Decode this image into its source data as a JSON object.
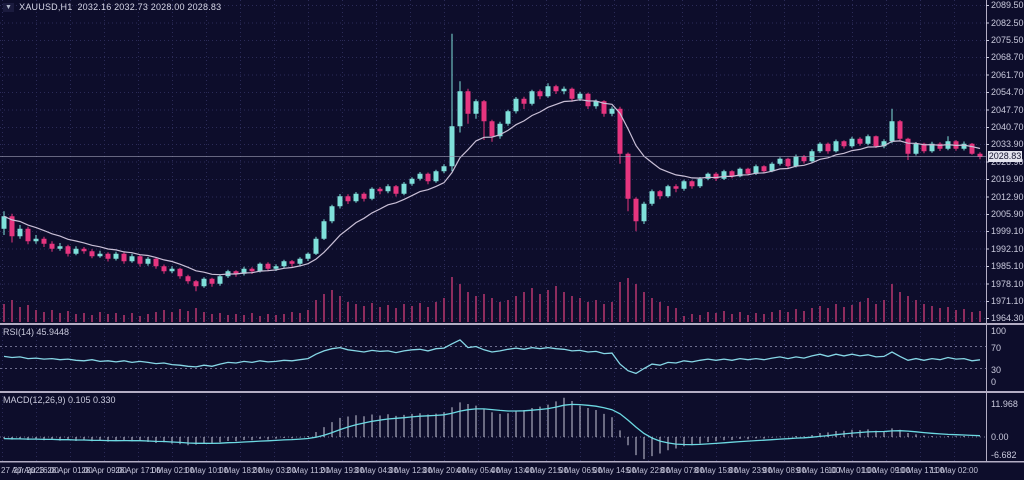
{
  "window": {
    "symbol": "XAUUSD,H1",
    "ohlc": "2032.16 2032.73 2028.00 2028.83"
  },
  "icons": {
    "symbol_marker": "▼"
  },
  "colors": {
    "background": "#0d0d2b",
    "grid": "#2b2b58",
    "bull": "#7fe0da",
    "bear": "#e6357f",
    "ma_line": "#c9bfd6",
    "volume": "#8e2c5e",
    "separator": "#b3adc4",
    "rsi_line": "#86d7e6",
    "level_dotted": "#8f8fb0",
    "macd_hist": "#c9c9da",
    "macd_signal": "#6cd9e2",
    "axis_text": "#c9c9dc",
    "current_price_line": "#9c9cb4",
    "price_box_bg": "#e3e3ee"
  },
  "indicators": {
    "rsi": {
      "label": "RSI(14) 45.9448"
    },
    "macd": {
      "label": "MACD(12,26,9) 0.105 0.330"
    }
  },
  "axes": {
    "price_labels": [
      2089.5,
      2082.5,
      2075.5,
      2068.7,
      2061.7,
      2054.7,
      2047.7,
      2040.7,
      2033.9,
      2026.9,
      2019.9,
      2012.9,
      2005.9,
      1999.1,
      1992.1,
      1985.1,
      1978.1,
      1971.1,
      1964.3
    ],
    "rsi_labels": [
      100,
      70,
      30,
      0
    ],
    "macd_labels": [
      "11.968",
      "0.00",
      "-6.682"
    ],
    "time_labels": [
      "27 Apr 2023",
      "27 Apr 16:00",
      "28 Apr 01:00",
      "28 Apr 09:00",
      "28 Apr 17:00",
      "1 May 02:00",
      "1 May 10:00",
      "1 May 18:00",
      "2 May 03:00",
      "2 May 11:00",
      "2 May 19:00",
      "3 May 04:00",
      "3 May 12:00",
      "3 May 20:00",
      "4 May 05:00",
      "4 May 13:00",
      "4 May 21:00",
      "5 May 06:00",
      "5 May 14:00",
      "5 May 22:00",
      "8 May 07:00",
      "8 May 15:00",
      "8 May 23:00",
      "9 May 08:00",
      "9 May 16:00",
      "10 May 01:00",
      "10 May 09:00",
      "10 May 17:00",
      "11 May 02:00"
    ]
  },
  "chart_data": {
    "type": "candlestick",
    "symbol": "XAUUSD",
    "timeframe": "H1",
    "title": "XAUUSD,H1 2032.16 2032.73 2028.00 2028.83",
    "current_price": 2028.83,
    "current_price_label": "2028.83",
    "ylim": [
      1960.1,
      2091.5
    ],
    "ma_period": 10,
    "candles": [
      [
        2000,
        2007,
        1997.5,
        2005
      ],
      [
        2005,
        2006,
        1994.5,
        1997
      ],
      [
        1997,
        2001.5,
        1996,
        2000
      ],
      [
        2000,
        2000.8,
        1993.8,
        1995
      ],
      [
        1995,
        1997.5,
        1994,
        1996
      ],
      [
        1996,
        1996.8,
        1992.7,
        1994
      ],
      [
        1994,
        1995,
        1990.8,
        1992
      ],
      [
        1992,
        1994.3,
        1991.2,
        1993
      ],
      [
        1993,
        1993.6,
        1988.9,
        1990
      ],
      [
        1990,
        1993,
        1989.4,
        1992
      ],
      [
        1992,
        1992.7,
        1990,
        1991
      ],
      [
        1991,
        1991.8,
        1988.2,
        1989
      ],
      [
        1989,
        1991.2,
        1988.4,
        1990
      ],
      [
        1990,
        1990.6,
        1986.9,
        1988
      ],
      [
        1988,
        1990.8,
        1987.3,
        1990
      ],
      [
        1990,
        1990.5,
        1986,
        1987
      ],
      [
        1987,
        1990,
        1986.4,
        1989
      ],
      [
        1989,
        1989.5,
        1984.9,
        1986
      ],
      [
        1986,
        1988.7,
        1985.2,
        1988
      ],
      [
        1988,
        1988.4,
        1984,
        1985
      ],
      [
        1985,
        1985.7,
        1982,
        1983
      ],
      [
        1983,
        1985,
        1982.2,
        1984
      ],
      [
        1984,
        1984.4,
        1980,
        1981
      ],
      [
        1981,
        1981.6,
        1978,
        1979
      ],
      [
        1979,
        1979.5,
        1975,
        1977
      ],
      [
        1977,
        1980.6,
        1976.4,
        1980
      ],
      [
        1980,
        1980.4,
        1976.8,
        1978
      ],
      [
        1978,
        1981.6,
        1977.2,
        1981
      ],
      [
        1981,
        1983.6,
        1980.3,
        1983
      ],
      [
        1983,
        1983.4,
        1980.8,
        1982
      ],
      [
        1982,
        1984.8,
        1981.3,
        1984
      ],
      [
        1984,
        1984.6,
        1981.9,
        1983
      ],
      [
        1983,
        1986.5,
        1982.5,
        1986
      ],
      [
        1986,
        1986.6,
        1983,
        1984
      ],
      [
        1984,
        1985.8,
        1983.1,
        1985
      ],
      [
        1985,
        1987.6,
        1984.2,
        1987
      ],
      [
        1987,
        1987.5,
        1984.8,
        1986
      ],
      [
        1986,
        1988.6,
        1985.3,
        1988
      ],
      [
        1988,
        1990.5,
        1987.1,
        1990
      ],
      [
        1990,
        1996.8,
        1989.5,
        1996
      ],
      [
        1996,
        2003.8,
        1995.5,
        2003
      ],
      [
        2003,
        2009.6,
        2002.2,
        2009
      ],
      [
        2009,
        2013.9,
        2008.1,
        2013
      ],
      [
        2013,
        2013.8,
        2009.9,
        2011
      ],
      [
        2011,
        2014.7,
        2010.4,
        2014
      ],
      [
        2014,
        2014.6,
        2010.9,
        2012
      ],
      [
        2012,
        2016.6,
        2011.4,
        2016
      ],
      [
        2016,
        2016.7,
        2013.8,
        2015
      ],
      [
        2015,
        2017.8,
        2014.2,
        2017
      ],
      [
        2017,
        2017.5,
        2012.9,
        2014
      ],
      [
        2014,
        2018.7,
        2013.4,
        2018
      ],
      [
        2018,
        2020.6,
        2017.2,
        2020
      ],
      [
        2020,
        2022.7,
        2019.3,
        2022
      ],
      [
        2022,
        2022.5,
        2017.8,
        2019
      ],
      [
        2019,
        2023.6,
        2018.4,
        2023
      ],
      [
        2023,
        2025.8,
        2022.2,
        2025
      ],
      [
        2025,
        2078,
        2023,
        2041
      ],
      [
        2041,
        2059,
        2038.5,
        2055
      ],
      [
        2055,
        2056,
        2042,
        2046
      ],
      [
        2046,
        2051.8,
        2044,
        2051
      ],
      [
        2051,
        2051.5,
        2035.5,
        2043
      ],
      [
        2043,
        2043.6,
        2034.8,
        2037
      ],
      [
        2037,
        2042.8,
        2036,
        2042
      ],
      [
        2042,
        2047.6,
        2041.2,
        2047
      ],
      [
        2047,
        2052.7,
        2046.1,
        2052
      ],
      [
        2052,
        2052.8,
        2047.9,
        2050
      ],
      [
        2050,
        2055.6,
        2049.3,
        2055
      ],
      [
        2055,
        2055.7,
        2051.8,
        2053
      ],
      [
        2053,
        2058.2,
        2052.4,
        2057
      ],
      [
        2057,
        2057.6,
        2053.9,
        2055
      ],
      [
        2055,
        2056.9,
        2053.8,
        2056
      ],
      [
        2056,
        2056.5,
        2050.8,
        2052
      ],
      [
        2052,
        2054.8,
        2051.1,
        2054
      ],
      [
        2054,
        2054.4,
        2047.9,
        2049
      ],
      [
        2049,
        2051.7,
        2048,
        2051
      ],
      [
        2051,
        2051.4,
        2044.8,
        2046
      ],
      [
        2046,
        2048.9,
        2045,
        2048
      ],
      [
        2048,
        2048.8,
        2026,
        2030
      ],
      [
        2030,
        2030.5,
        2007,
        2012
      ],
      [
        2012,
        2012.6,
        1999,
        2003
      ],
      [
        2003,
        2010.8,
        2001.9,
        2010
      ],
      [
        2010,
        2015.7,
        2009.2,
        2015
      ],
      [
        2015,
        2015.5,
        2011.8,
        2013
      ],
      [
        2013,
        2017.6,
        2012.4,
        2017
      ],
      [
        2017,
        2017.8,
        2014.6,
        2016
      ],
      [
        2016,
        2019.6,
        2015.2,
        2019
      ],
      [
        2019,
        2019.4,
        2016,
        2017
      ],
      [
        2017,
        2020.7,
        2016.3,
        2020
      ],
      [
        2020,
        2022.5,
        2019.4,
        2022
      ],
      [
        2022,
        2022.6,
        2019.1,
        2020
      ],
      [
        2020,
        2023.6,
        2019.5,
        2023
      ],
      [
        2023,
        2023.4,
        2020.2,
        2021
      ],
      [
        2021,
        2024.5,
        2020.6,
        2024
      ],
      [
        2024,
        2024.4,
        2021.3,
        2022
      ],
      [
        2022,
        2025.7,
        2021.5,
        2025
      ],
      [
        2025,
        2025.4,
        2022.2,
        2023
      ],
      [
        2023,
        2026.6,
        2022.6,
        2026
      ],
      [
        2026,
        2028.6,
        2025.3,
        2028
      ],
      [
        2028,
        2028.4,
        2024.2,
        2025
      ],
      [
        2025,
        2029.7,
        2024.5,
        2029
      ],
      [
        2029,
        2029.5,
        2026.1,
        2027
      ],
      [
        2027,
        2031.8,
        2026.4,
        2031
      ],
      [
        2031,
        2034.6,
        2030.3,
        2034
      ],
      [
        2034,
        2034.5,
        2030,
        2031
      ],
      [
        2031,
        2035.7,
        2030.5,
        2035
      ],
      [
        2035,
        2035.4,
        2032.1,
        2033
      ],
      [
        2033,
        2036.8,
        2032.4,
        2036
      ],
      [
        2036,
        2036.6,
        2033.2,
        2034
      ],
      [
        2034,
        2037.7,
        2033.4,
        2037
      ],
      [
        2037,
        2037.3,
        2032.3,
        2033
      ],
      [
        2033,
        2035.8,
        2032.2,
        2035
      ],
      [
        2035,
        2048,
        2034.2,
        2043
      ],
      [
        2043,
        2043.5,
        2035.1,
        2036
      ],
      [
        2036,
        2036.4,
        2027.5,
        2030
      ],
      [
        2030,
        2034.7,
        2029.3,
        2034
      ],
      [
        2034,
        2034.4,
        2030.2,
        2031
      ],
      [
        2031,
        2034.8,
        2030.4,
        2034
      ],
      [
        2034,
        2034.6,
        2031.1,
        2032
      ],
      [
        2032,
        2037,
        2031.4,
        2035
      ],
      [
        2035,
        2035.5,
        2031.2,
        2032
      ],
      [
        2032,
        2034.9,
        2031.3,
        2034
      ],
      [
        2034,
        2034.3,
        2029.6,
        2030
      ],
      [
        2030,
        2030.6,
        2027.8,
        2028.83
      ]
    ],
    "volumes": [
      18,
      22,
      15,
      17,
      12,
      10,
      12,
      9,
      11,
      8,
      9,
      7,
      10,
      8,
      9,
      7,
      9,
      6,
      8,
      10,
      12,
      10,
      13,
      11,
      14,
      10,
      8,
      9,
      7,
      8,
      7,
      9,
      6,
      8,
      7,
      8,
      10,
      9,
      12,
      22,
      28,
      32,
      26,
      20,
      18,
      16,
      19,
      15,
      17,
      14,
      18,
      16,
      19,
      15,
      20,
      24,
      45,
      38,
      30,
      26,
      28,
      24,
      20,
      22,
      26,
      30,
      34,
      28,
      32,
      36,
      30,
      26,
      24,
      20,
      22,
      18,
      20,
      40,
      44,
      38,
      30,
      24,
      20,
      16,
      14,
      6,
      8,
      7,
      10,
      9,
      11,
      8,
      10,
      7,
      9,
      8,
      10,
      12,
      10,
      13,
      11,
      14,
      16,
      14,
      18,
      15,
      17,
      20,
      24,
      18,
      22,
      38,
      30,
      26,
      22,
      18,
      16,
      14,
      15,
      12,
      13,
      10,
      11
    ],
    "rsi": {
      "period": 14,
      "current": 45.9448,
      "levels": [
        70,
        30
      ],
      "series": [
        52,
        50,
        51,
        48,
        49,
        47,
        48,
        46,
        47,
        45,
        44,
        46,
        43,
        44,
        42,
        44,
        41,
        43,
        41,
        39,
        40,
        37,
        36,
        34,
        33,
        36,
        34,
        38,
        41,
        40,
        43,
        41,
        44,
        42,
        43,
        45,
        44,
        46,
        48,
        56,
        62,
        66,
        68,
        64,
        62,
        60,
        63,
        61,
        62,
        59,
        62,
        64,
        65,
        62,
        66,
        67,
        75,
        82,
        68,
        70,
        64,
        60,
        62,
        65,
        67,
        65,
        68,
        66,
        68,
        66,
        65,
        62,
        63,
        60,
        61,
        57,
        58,
        38,
        26,
        21,
        30,
        38,
        36,
        41,
        40,
        44,
        42,
        45,
        47,
        45,
        47,
        45,
        48,
        46,
        48,
        46,
        49,
        51,
        48,
        51,
        49,
        53,
        56,
        52,
        56,
        53,
        56,
        53,
        55,
        51,
        52,
        60,
        52,
        45,
        48,
        45,
        48,
        46,
        50,
        47,
        48,
        44,
        45.9
      ]
    },
    "macd": {
      "params": [
        12,
        26,
        9
      ],
      "main_current": 0.105,
      "signal_current": 0.33,
      "signal_period": 9,
      "main": [
        -0.5,
        -0.8,
        -0.6,
        -0.9,
        -0.7,
        -1.0,
        -0.8,
        -1.1,
        -0.9,
        -1.2,
        -1.0,
        -1.3,
        -1.1,
        -1.4,
        -1.2,
        -1.0,
        -1.3,
        -1.1,
        -1.5,
        -1.8,
        -1.6,
        -2.0,
        -2.2,
        -2.5,
        -2.3,
        -1.9,
        -2.1,
        -1.6,
        -1.2,
        -1.3,
        -0.9,
        -1.0,
        -0.6,
        -0.8,
        -0.5,
        -0.3,
        -0.4,
        -0.1,
        0.3,
        1.5,
        3.0,
        4.5,
        5.8,
        6.2,
        6.6,
        6.3,
        6.8,
        6.5,
        6.9,
        6.4,
        6.7,
        7.0,
        7.2,
        6.8,
        7.1,
        7.5,
        9.0,
        10.5,
        10.0,
        9.5,
        8.5,
        7.5,
        7.0,
        7.2,
        7.8,
        8.2,
        8.8,
        9.2,
        9.8,
        10.8,
        11.9,
        10.9,
        9.5,
        8.8,
        8.2,
        7.0,
        6.0,
        2.0,
        -2.5,
        -5.5,
        -6.7,
        -5.8,
        -5.0,
        -4.0,
        -3.5,
        -2.8,
        -2.5,
        -2.0,
        -1.5,
        -1.3,
        -1.0,
        -0.9,
        -0.6,
        -0.7,
        -0.4,
        -0.5,
        -0.2,
        0.1,
        0.0,
        0.3,
        0.2,
        0.6,
        1.2,
        1.4,
        1.8,
        1.9,
        2.2,
        2.1,
        2.3,
        1.9,
        1.8,
        2.6,
        2.2,
        1.2,
        0.8,
        0.4,
        0.3,
        0.1,
        0.3,
        0.2,
        0.3,
        0.0,
        0.105
      ]
    }
  }
}
